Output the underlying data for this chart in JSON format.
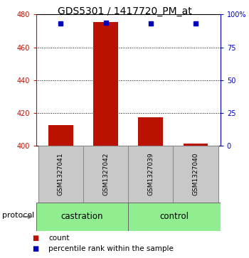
{
  "title": "GDS5301 / 1417720_PM_at",
  "samples": [
    "GSM1327041",
    "GSM1327042",
    "GSM1327039",
    "GSM1327040"
  ],
  "counts": [
    412.5,
    475.5,
    417.5,
    401.5
  ],
  "percentile_ranks": [
    93.0,
    93.5,
    93.0,
    93.0
  ],
  "ymin": 400,
  "ymax": 480,
  "yticks": [
    400,
    420,
    440,
    460,
    480
  ],
  "right_yticks": [
    0,
    25,
    50,
    75,
    100
  ],
  "right_ylabels": [
    "0",
    "25",
    "50",
    "75",
    "100%"
  ],
  "bar_color": "#bb1100",
  "dot_color": "#0000bb",
  "bar_width": 0.55,
  "group_labels": [
    "castration",
    "control"
  ],
  "group_ranges": [
    [
      0,
      2
    ],
    [
      2,
      4
    ]
  ],
  "group_color": "#90ee90",
  "sample_box_color": "#c8c8c8",
  "legend_count_label": "count",
  "legend_pct_label": "percentile rank within the sample",
  "protocol_label": "protocol",
  "bg_color": "#ffffff",
  "title_fontsize": 10,
  "tick_fontsize": 7,
  "sample_fontsize": 6.5,
  "group_fontsize": 8.5
}
